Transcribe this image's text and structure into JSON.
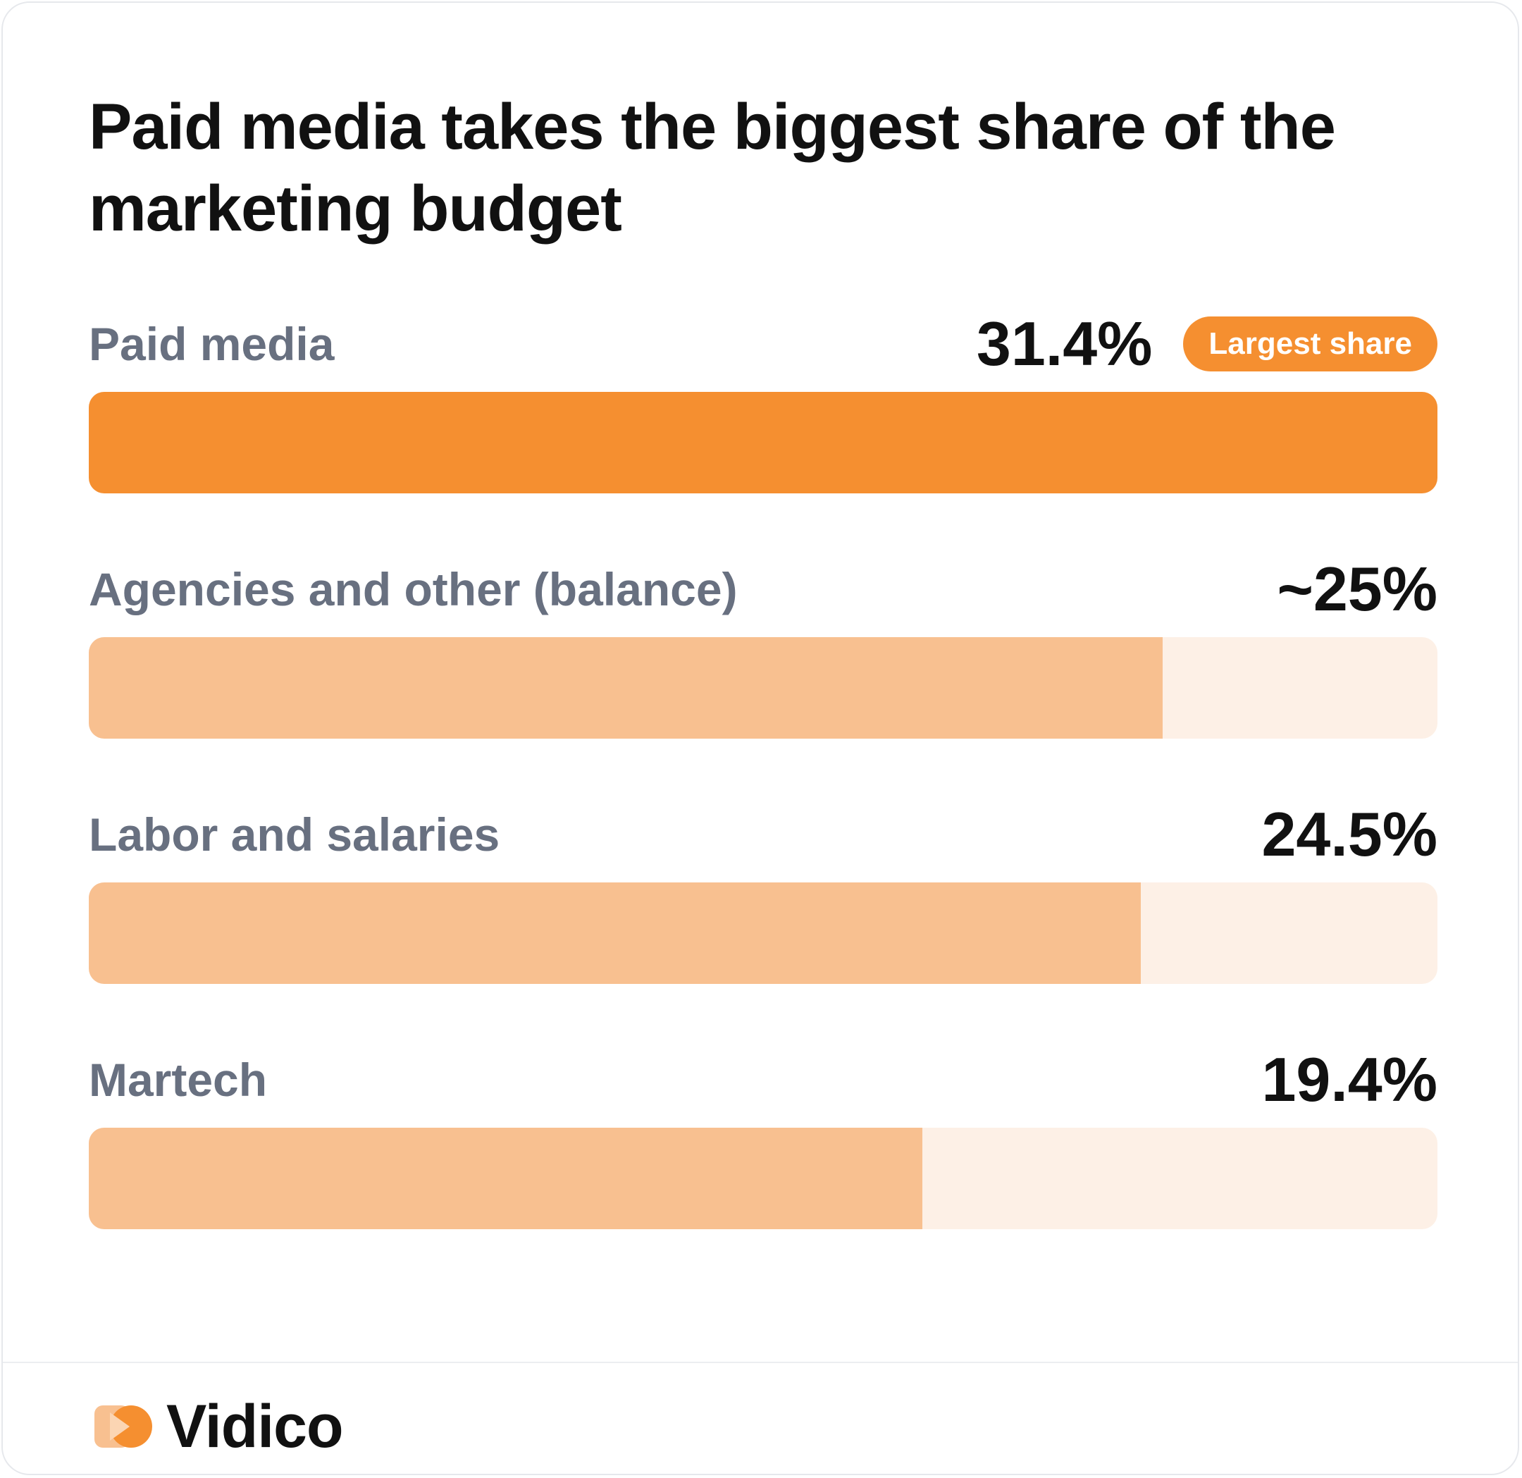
{
  "chart_data": {
    "type": "bar",
    "orientation": "horizontal",
    "title": "Paid media takes the biggest share of the marketing budget",
    "categories": [
      "Paid media",
      "Agencies and other (balance)",
      "Labor and salaries",
      "Martech"
    ],
    "values": [
      31.4,
      25,
      24.5,
      19.4
    ],
    "value_labels": [
      "31.4%",
      "~25%",
      "24.5%",
      "19.4%"
    ],
    "xlim": [
      0,
      31.4
    ],
    "grid": false,
    "highlight": {
      "index": 0,
      "badge": "Largest share"
    },
    "colors": {
      "highlight": "#f58f30",
      "bar": "#f8c090",
      "track": "#fdf0e6"
    }
  },
  "brand": {
    "name": "Vidico",
    "colors": [
      "#f8c090",
      "#f58f30"
    ]
  }
}
